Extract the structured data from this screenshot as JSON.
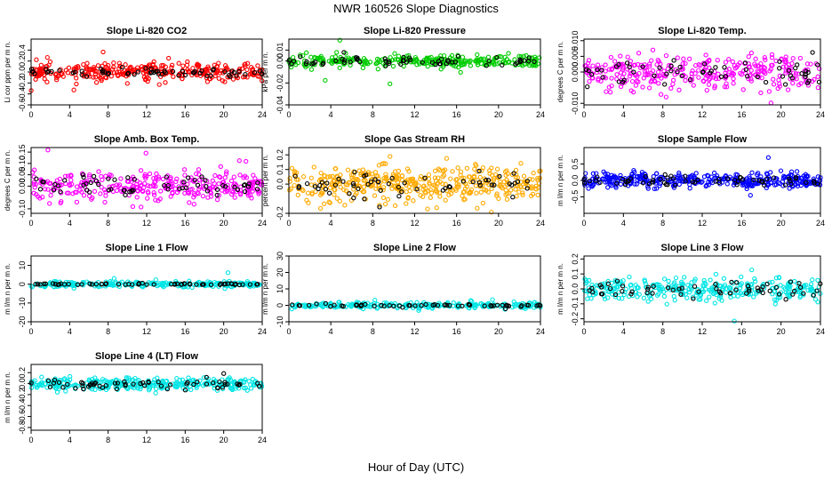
{
  "figure": {
    "title": "NWR  160526  Slope Diagnostics",
    "xlabel": "Hour of Day (UTC)"
  },
  "chart_data": [
    {
      "type": "scatter",
      "title": "Slope Li-820 CO2",
      "ylabel": "Li cor ppm per m n.",
      "xlim": [
        0,
        24
      ],
      "ylim": [
        -0.6,
        0.6
      ],
      "yticks": [
        "-0.6",
        "-0.4",
        "-0.2",
        "0.0",
        "0.2",
        "0.4"
      ],
      "xticks": [
        "0",
        "4",
        "8",
        "12",
        "16",
        "20",
        "24"
      ],
      "series": [
        {
          "color": "#ff0000",
          "spread": 0.12,
          "n": 320,
          "seed": 11
        },
        {
          "color": "#000000",
          "spread": 0.06,
          "n": 60,
          "seed": 12
        }
      ]
    },
    {
      "type": "scatter",
      "title": "Slope Li-820 Pressure",
      "ylabel": "kPa per m n.",
      "xlim": [
        0,
        24
      ],
      "ylim": [
        -0.04,
        0.02
      ],
      "yticks": [
        "-0.04",
        "-0.02",
        "0.00",
        "0.01"
      ],
      "xticks": [
        "0",
        "4",
        "8",
        "12",
        "16",
        "20",
        "24"
      ],
      "series": [
        {
          "color": "#00cc00",
          "spread": 0.004,
          "n": 300,
          "seed": 21
        },
        {
          "color": "#000000",
          "spread": 0.0025,
          "n": 60,
          "seed": 22
        }
      ]
    },
    {
      "type": "scatter",
      "title": "Slope Li-820 Temp.",
      "ylabel": "degrees C per m n.",
      "xlim": [
        0,
        24
      ],
      "ylim": [
        -0.0105,
        0.0105
      ],
      "yticks": [
        "-0.010",
        "0.000",
        "0.005",
        "0.010"
      ],
      "xticks": [
        "0",
        "4",
        "8",
        "12",
        "16",
        "20",
        "24"
      ],
      "series": [
        {
          "color": "#ff00ff",
          "spread": 0.004,
          "n": 320,
          "seed": 31
        },
        {
          "color": "#000000",
          "spread": 0.003,
          "n": 60,
          "seed": 32
        }
      ]
    },
    {
      "type": "scatter",
      "title": "Slope Amb. Box Temp.",
      "ylabel": "degrees C per m n.",
      "xlim": [
        0,
        24
      ],
      "ylim": [
        -0.12,
        0.17
      ],
      "yticks": [
        "-0.10",
        "0.00",
        "0.05",
        "0.10",
        "0.15"
      ],
      "xticks": [
        "0",
        "4",
        "8",
        "12",
        "16",
        "20",
        "24"
      ],
      "series": [
        {
          "color": "#ff00ff",
          "spread": 0.045,
          "n": 320,
          "seed": 41
        },
        {
          "color": "#000000",
          "spread": 0.03,
          "n": 60,
          "seed": 42
        }
      ]
    },
    {
      "type": "scatter",
      "title": "Slope Gas Stream RH",
      "ylabel": "percent per m n.",
      "xlim": [
        0,
        24
      ],
      "ylim": [
        -0.2,
        0.25
      ],
      "yticks": [
        "-0.2",
        "0.0",
        "0.1",
        "0.2"
      ],
      "xticks": [
        "0",
        "4",
        "8",
        "12",
        "16",
        "20",
        "24"
      ],
      "series": [
        {
          "color": "#ffaa00",
          "spread": 0.09,
          "n": 420,
          "seed": 51
        },
        {
          "color": "#000000",
          "spread": 0.05,
          "n": 60,
          "seed": 52
        }
      ]
    },
    {
      "type": "scatter",
      "title": "Slope Sample Flow",
      "ylabel": "m l/m n per m n.",
      "xlim": [
        0,
        24
      ],
      "ylim": [
        -1.0,
        1.0
      ],
      "yticks": [
        "-0.5",
        "0.0",
        "0.5"
      ],
      "xticks": [
        "0",
        "4",
        "8",
        "12",
        "16",
        "20",
        "24"
      ],
      "series": [
        {
          "color": "#0000ff",
          "spread": 0.17,
          "n": 360,
          "seed": 61
        },
        {
          "color": "#000000",
          "spread": 0.12,
          "n": 60,
          "seed": 62
        }
      ]
    },
    {
      "type": "scatter",
      "title": "Slope Line 1 Flow",
      "ylabel": "m l/m n per m n.",
      "xlim": [
        0,
        24
      ],
      "ylim": [
        -20,
        15
      ],
      "yticks": [
        "-20",
        "-10",
        "0",
        "10"
      ],
      "xticks": [
        "0",
        "4",
        "8",
        "12",
        "16",
        "20",
        "24"
      ],
      "series": [
        {
          "color": "#00e5e5",
          "spread": 1.0,
          "n": 260,
          "seed": 71
        },
        {
          "color": "#000000",
          "spread": 0.35,
          "n": 60,
          "seed": 72
        }
      ]
    },
    {
      "type": "scatter",
      "title": "Slope Line 2 Flow",
      "ylabel": "m l/m n per m n.",
      "xlim": [
        0,
        24
      ],
      "ylim": [
        -10,
        30
      ],
      "yticks": [
        "-10",
        "0",
        "10",
        "20",
        "30"
      ],
      "xticks": [
        "0",
        "4",
        "8",
        "12",
        "16",
        "20",
        "24"
      ],
      "series": [
        {
          "color": "#00e5e5",
          "spread": 1.3,
          "n": 260,
          "seed": 81
        },
        {
          "color": "#000000",
          "spread": 0.5,
          "n": 60,
          "seed": 82
        }
      ]
    },
    {
      "type": "scatter",
      "title": "Slope Line 3 Flow",
      "ylabel": "m l/m n per m n.",
      "xlim": [
        0,
        24
      ],
      "ylim": [
        -0.22,
        0.22
      ],
      "yticks": [
        "-0.2",
        "-0.1",
        "0.0",
        "0.1",
        "0.2"
      ],
      "xticks": [
        "0",
        "4",
        "8",
        "12",
        "16",
        "20",
        "24"
      ],
      "series": [
        {
          "color": "#00e5e5",
          "spread": 0.055,
          "n": 320,
          "seed": 91
        },
        {
          "color": "#000000",
          "spread": 0.045,
          "n": 60,
          "seed": 92
        }
      ]
    },
    {
      "type": "scatter",
      "title": "Slope Line 4 (LT) Flow",
      "ylabel": "m l/m n per m n.",
      "xlim": [
        0,
        24
      ],
      "ylim": [
        -0.85,
        0.35
      ],
      "yticks": [
        "-0.8",
        "-0.6",
        "-0.4",
        "-0.2",
        "0.0",
        "0.2"
      ],
      "xticks": [
        "0",
        "4",
        "8",
        "12",
        "16",
        "20",
        "24"
      ],
      "series": [
        {
          "color": "#00e5e5",
          "spread": 0.08,
          "n": 320,
          "seed": 101
        },
        {
          "color": "#000000",
          "spread": 0.06,
          "n": 60,
          "seed": 102
        }
      ]
    }
  ]
}
